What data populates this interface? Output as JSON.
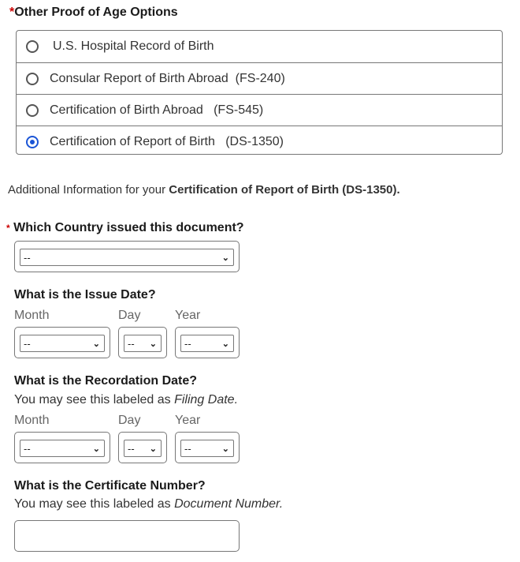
{
  "proof": {
    "required_mark": "*",
    "title": "Other Proof of Age Options",
    "options": [
      {
        "label": "U.S. Hospital Record of Birth",
        "selected": false
      },
      {
        "label": "Consular Report of Birth Abroad  (FS-240)",
        "selected": false
      },
      {
        "label": "Certification of Birth Abroad   (FS-545)",
        "selected": false
      },
      {
        "label": "Certification of Report of Birth   (DS-1350)",
        "selected": true
      }
    ]
  },
  "additional": {
    "prefix": "Additional Information for your ",
    "bold": "Certification of Report of Birth (DS-1350)."
  },
  "country": {
    "required_mark": "*",
    "label": "Which Country issued this document?",
    "value": "--"
  },
  "issue_date": {
    "label": "What is the Issue Date?",
    "month_label": "Month",
    "day_label": "Day",
    "year_label": "Year",
    "month": "--",
    "day": "--",
    "year": "--"
  },
  "recordation_date": {
    "label": "What is the Recordation Date?",
    "hint_prefix": "You may see this labeled as ",
    "hint_em": "Filing Date.",
    "month_label": "Month",
    "day_label": "Day",
    "year_label": "Year",
    "month": "--",
    "day": "--",
    "year": "--"
  },
  "certificate": {
    "label": "What is the Certificate Number?",
    "hint_prefix": "You may see this labeled as ",
    "hint_em": "Document Number.",
    "value": ""
  },
  "colors": {
    "required": "#cc0000",
    "radio_selected": "#1b55d6"
  }
}
